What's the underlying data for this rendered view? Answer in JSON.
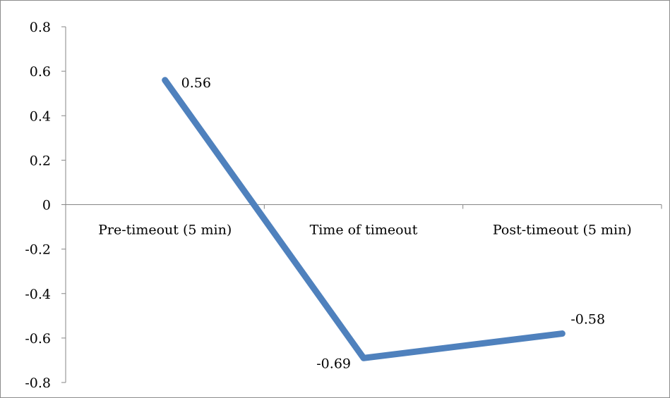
{
  "chart_data": {
    "type": "line",
    "categories": [
      "Pre-timeout (5 min)",
      "Time of timeout",
      "Post-timeout (5 min)"
    ],
    "series": [
      {
        "values": [
          0.56,
          -0.69,
          -0.58
        ],
        "color": "#4F81BD",
        "data_labels": [
          "0.56",
          "-0.69",
          "-0.58"
        ]
      }
    ],
    "title": "",
    "xlabel": "",
    "ylabel": "",
    "ylim": [
      -0.8,
      0.8
    ],
    "ytick_step": 0.2,
    "yticks": [
      "0.8",
      "0.6",
      "0.4",
      "0.2",
      "0",
      "-0.2",
      "-0.4",
      "-0.6",
      "-0.8"
    ],
    "grid": false,
    "legend": "none",
    "axis_color": "#868686"
  }
}
